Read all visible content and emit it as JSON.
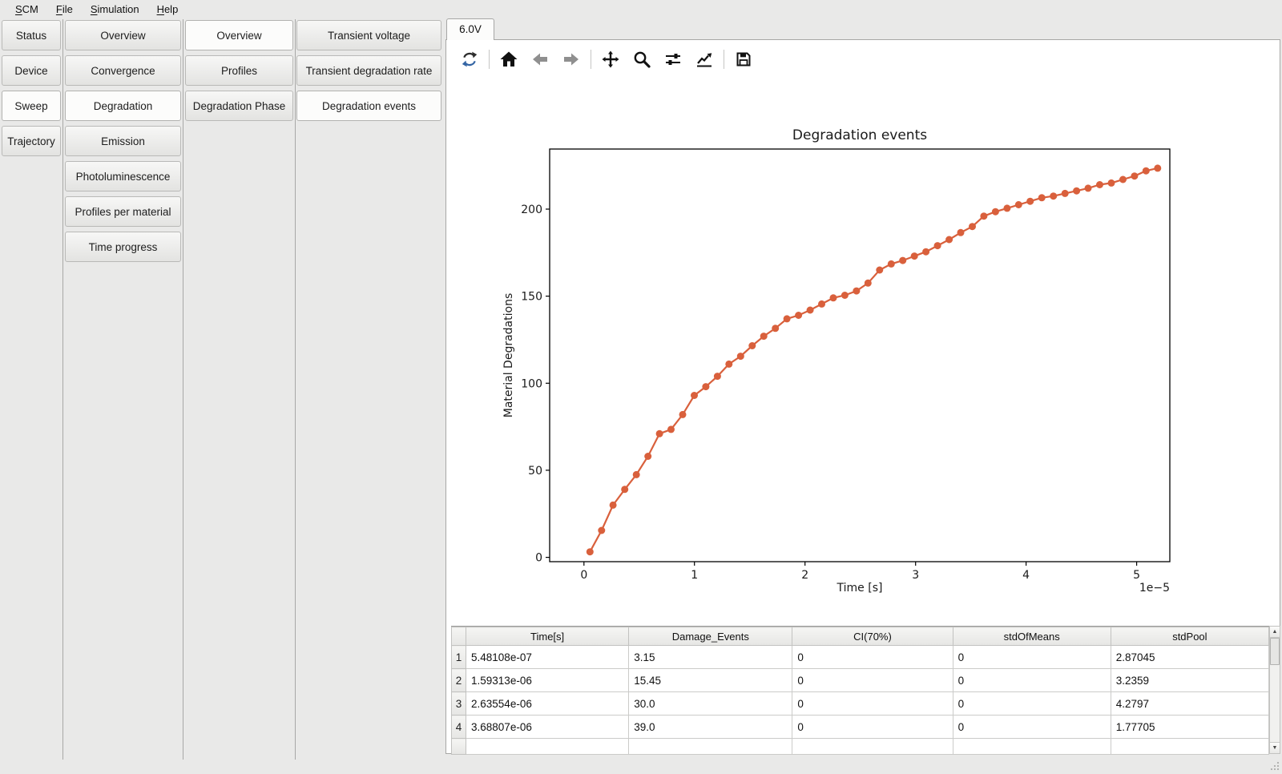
{
  "menu": {
    "items": [
      {
        "accel": "S",
        "rest": "CM"
      },
      {
        "accel": "F",
        "rest": "ile"
      },
      {
        "accel": "S",
        "rest": "imulation"
      },
      {
        "accel": "H",
        "rest": "elp"
      }
    ]
  },
  "nav": {
    "col1": {
      "items": [
        "Status",
        "Device",
        "Sweep",
        "Trajectory"
      ],
      "selected": "Sweep"
    },
    "col2": {
      "items": [
        "Overview",
        "Convergence",
        "Degradation",
        "Emission",
        "Photoluminescence",
        "Profiles per material",
        "Time progress"
      ],
      "selected": "Degradation"
    },
    "col3": {
      "items": [
        "Overview",
        "Profiles",
        "Degradation Phase"
      ],
      "selected": "Overview"
    },
    "col4": {
      "items": [
        "Transient voltage",
        "Transient degradation rate",
        "Degradation events"
      ],
      "selected": "Degradation events"
    }
  },
  "main": {
    "voltage_tab": "6.0V",
    "toolbar_icons": [
      "refresh-icon",
      "home-icon",
      "back-icon",
      "forward-icon",
      "pan-icon",
      "zoom-icon",
      "sliders-icon",
      "axes-style-icon",
      "save-icon"
    ]
  },
  "chart_data": {
    "type": "line",
    "title": "Degradation events",
    "xlabel": "Time [s]",
    "ylabel": "Material Degradations",
    "x_offset_label": "1e−5",
    "line_color": "#d9603c",
    "marker": "o",
    "grid": false,
    "legend": "none",
    "xlim": [
      -3.1e-06,
      5.3e-05
    ],
    "ylim": [
      -2.5,
      234.5
    ],
    "xticks": [
      0,
      1e-05,
      2e-05,
      3e-05,
      4e-05,
      5e-05
    ],
    "xtick_labels": [
      "0",
      "1",
      "2",
      "3",
      "4",
      "5"
    ],
    "yticks": [
      0,
      50,
      100,
      150,
      200
    ],
    "ytick_labels": [
      "0",
      "50",
      "100",
      "150",
      "200"
    ],
    "series": [
      {
        "name": "Damage_Events",
        "x": [
          5.48108e-07,
          1.59313e-06,
          2.63554e-06,
          3.68807e-06,
          4.74e-06,
          5.79e-06,
          6.84e-06,
          7.88e-06,
          8.93e-06,
          9.98e-06,
          1.103e-05,
          1.208e-05,
          1.312e-05,
          1.417e-05,
          1.522e-05,
          1.627e-05,
          1.732e-05,
          1.836e-05,
          1.941e-05,
          2.046e-05,
          2.151e-05,
          2.256e-05,
          2.36e-05,
          2.465e-05,
          2.57e-05,
          2.675e-05,
          2.78e-05,
          2.884e-05,
          2.989e-05,
          3.094e-05,
          3.199e-05,
          3.304e-05,
          3.408e-05,
          3.513e-05,
          3.618e-05,
          3.723e-05,
          3.828e-05,
          3.932e-05,
          4.037e-05,
          4.142e-05,
          4.247e-05,
          4.352e-05,
          4.456e-05,
          4.561e-05,
          4.666e-05,
          4.771e-05,
          4.876e-05,
          4.98e-05,
          5.085e-05,
          5.19e-05
        ],
        "y": [
          3.15,
          15.45,
          30.0,
          39.0,
          47.5,
          58.0,
          71.0,
          73.5,
          82.0,
          93.0,
          98.0,
          104.0,
          111.0,
          115.5,
          121.5,
          127.0,
          131.5,
          137.0,
          139.0,
          142.0,
          145.5,
          149.0,
          150.5,
          153.0,
          157.5,
          165.0,
          168.5,
          170.5,
          173.0,
          175.5,
          179.0,
          182.5,
          186.5,
          190.0,
          196.0,
          198.5,
          200.5,
          202.5,
          204.5,
          206.5,
          207.5,
          209.0,
          210.5,
          212.0,
          214.0,
          215.0,
          217.0,
          219.0,
          222.0,
          223.5
        ]
      }
    ]
  },
  "table": {
    "headers": [
      "Time[s]",
      "Damage_Events",
      "CI(70%)",
      "stdOfMeans",
      "stdPool"
    ],
    "rows": [
      {
        "num": "1",
        "cells": [
          "5.48108e-07",
          "3.15",
          "0",
          "0",
          "2.87045"
        ]
      },
      {
        "num": "2",
        "cells": [
          "1.59313e-06",
          "15.45",
          "0",
          "0",
          "3.2359"
        ]
      },
      {
        "num": "3",
        "cells": [
          "2.63554e-06",
          "30.0",
          "0",
          "0",
          "4.2797"
        ]
      },
      {
        "num": "4",
        "cells": [
          "3.68807e-06",
          "39.0",
          "0",
          "0",
          "1.77705"
        ]
      }
    ]
  }
}
